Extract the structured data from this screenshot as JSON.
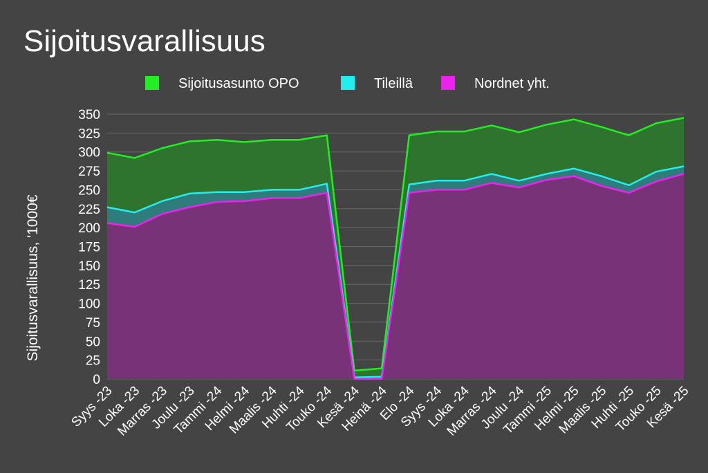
{
  "chart_data": {
    "type": "area",
    "title": "Sijoitusvarallisuus",
    "ylabel": "Sijoitusvarallisuus, '1000€",
    "xlabel": "",
    "ylim": [
      0,
      350
    ],
    "yticks": [
      0,
      25,
      50,
      75,
      100,
      125,
      150,
      175,
      200,
      225,
      250,
      275,
      300,
      325,
      350
    ],
    "grid": true,
    "legend_position": "top",
    "categories": [
      "Syys -23",
      "Loka -23",
      "Marras -23",
      "Joulu -23",
      "Tammi -24",
      "Helmi -24",
      "Maalis -24",
      "Huhti -24",
      "Touko -24",
      "Kesä -24",
      "Heinä -24",
      "Elo -24",
      "Syys -24",
      "Loka -24",
      "Marras -24",
      "Joulu -24",
      "Tammi -25",
      "Helmi -25",
      "Maalis -25",
      "Huhti -25",
      "Touko -25",
      "Kesä -25"
    ],
    "series": [
      {
        "name": "Sijoitusasunto OPO",
        "line_color": "#22ee22",
        "fill_color": "#2e742e",
        "values": [
          299,
          292,
          305,
          314,
          316,
          313,
          316,
          316,
          322,
          11,
          14,
          322,
          327,
          327,
          335,
          326,
          336,
          343,
          333,
          322,
          338,
          345
        ]
      },
      {
        "name": "Tileillä",
        "line_color": "#22eeee",
        "fill_color": "#2e7c7c",
        "values": [
          227,
          220,
          235,
          245,
          247,
          247,
          250,
          250,
          258,
          2,
          3,
          257,
          262,
          262,
          271,
          262,
          271,
          278,
          268,
          256,
          274,
          281
        ]
      },
      {
        "name": "Nordnet yht.",
        "line_color": "#ee22ee",
        "fill_color": "#783278",
        "values": [
          206,
          201,
          218,
          227,
          234,
          235,
          239,
          239,
          246,
          0,
          0,
          246,
          250,
          250,
          259,
          253,
          263,
          268,
          255,
          246,
          261,
          271
        ]
      }
    ]
  }
}
